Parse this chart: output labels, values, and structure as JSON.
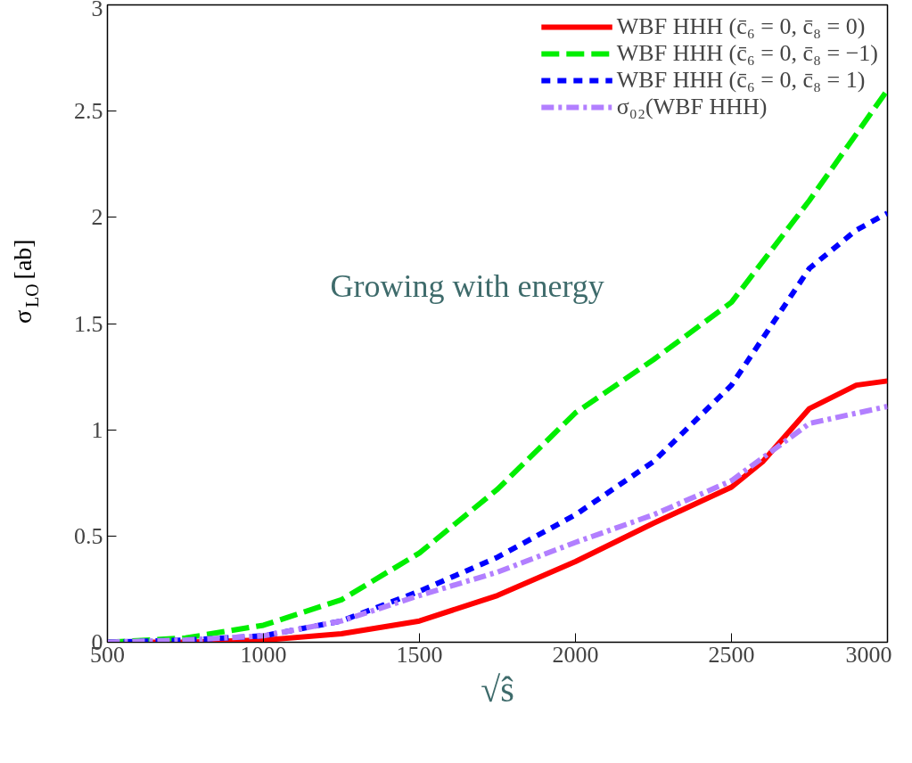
{
  "chart_data": {
    "type": "line",
    "xlabel": "√ŝ",
    "ylabel": "σ$_{LO}$ [ab]",
    "annotations": [
      "Growing with energy"
    ],
    "xlim": [
      500,
      3000
    ],
    "ylim": [
      0,
      3
    ],
    "xticks": [
      500,
      1000,
      1500,
      2000,
      2500,
      3000
    ],
    "yticks": [
      0,
      0.5,
      1,
      1.5,
      2,
      2.5,
      3
    ],
    "grid": false,
    "legend": "top right",
    "series": [
      {
        "name": "WBF HHH (c̄₆ = 0, c̄₈ = 0)",
        "color": "#ff0000",
        "line_style": "solid",
        "x": [
          500,
          750,
          1000,
          1250,
          1500,
          1750,
          2000,
          2250,
          2500,
          2600,
          2750,
          2900,
          3000
        ],
        "values": [
          0,
          0,
          0.01,
          0.04,
          0.1,
          0.22,
          0.38,
          0.56,
          0.73,
          0.85,
          1.1,
          1.21,
          1.23
        ]
      },
      {
        "name": "WBF HHH (c̄₆ = 0, c̄₈ = −1)",
        "color": "#00ee00",
        "line_style": "dashed",
        "x": [
          500,
          750,
          1000,
          1250,
          1500,
          1750,
          2000,
          2250,
          2500,
          2750,
          3000
        ],
        "values": [
          0,
          0.02,
          0.08,
          0.2,
          0.42,
          0.72,
          1.08,
          1.33,
          1.6,
          2.08,
          2.6
        ]
      },
      {
        "name": "WBF HHH (c̄₆ = 0, c̄₈ = 1)",
        "color": "#0000ff",
        "line_style": "dotted",
        "x": [
          500,
          750,
          1000,
          1250,
          1500,
          1750,
          2000,
          2250,
          2500,
          2750,
          2900,
          3000
        ],
        "values": [
          0,
          0.01,
          0.03,
          0.1,
          0.24,
          0.4,
          0.6,
          0.85,
          1.21,
          1.76,
          1.94,
          2.02
        ]
      },
      {
        "name": "σ₀₂(WBF HHH)",
        "color": "#b27fff",
        "line_style": "dashdot",
        "x": [
          500,
          750,
          1000,
          1250,
          1500,
          1750,
          2000,
          2250,
          2500,
          2750,
          3000
        ],
        "values": [
          0,
          0.01,
          0.03,
          0.1,
          0.22,
          0.33,
          0.47,
          0.6,
          0.76,
          1.03,
          1.11
        ]
      }
    ]
  }
}
